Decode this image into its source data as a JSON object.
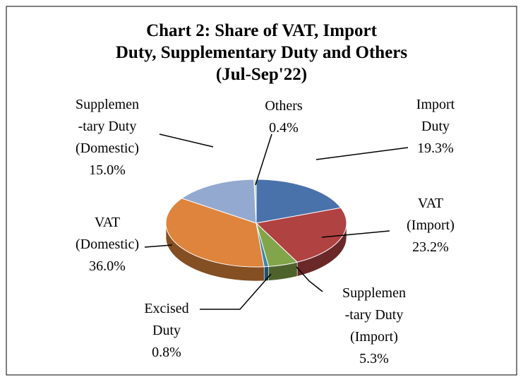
{
  "chart_data": {
    "type": "pie",
    "title": "Chart 2: Share of VAT, Import\nDuty, Supplementary Duty and Others\n(Jul-Sep'22)",
    "categories": [
      "Import\nDuty",
      "VAT\n(Import)",
      "Supplemen\n-tary Duty\n(Import)",
      "Excised\nDuty",
      "VAT\n(Domestic)",
      "Supplemen\n-tary Duty\n(Domestic)",
      "Others"
    ],
    "values": [
      19.3,
      23.2,
      5.3,
      0.8,
      36.0,
      15.0,
      0.4
    ],
    "value_labels": [
      "19.3%",
      "23.2%",
      "5.3%",
      "0.8%",
      "36.0%",
      "15.0%",
      "0.4%"
    ],
    "colors": [
      "#4a72aa",
      "#b04242",
      "#82a54a",
      "#3c86ad",
      "#de843c",
      "#93a9d0",
      "#c5d99c"
    ]
  }
}
